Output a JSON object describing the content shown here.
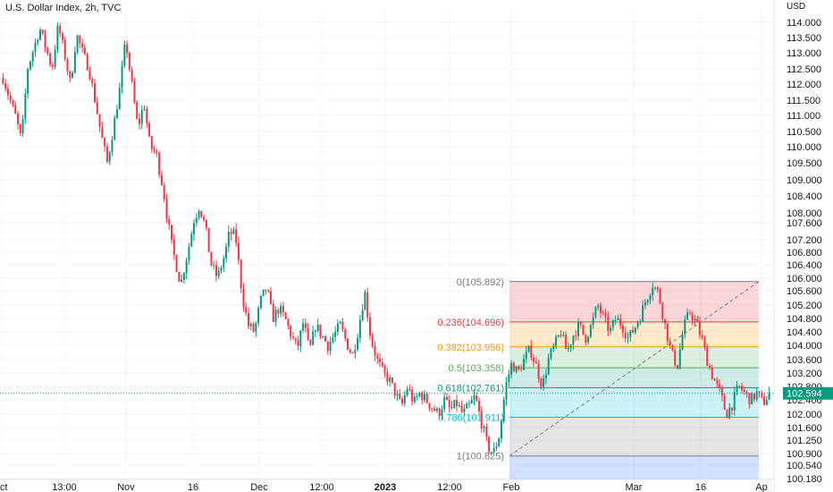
{
  "header": {
    "title": "U.S. Dollar Index, 2h, TVC"
  },
  "chart_data": {
    "type": "candlestick",
    "title": "U.S. Dollar Index, 2h, TVC",
    "currency_label": "USD",
    "last_price": 102.594,
    "last_price_label": "102.594",
    "y_range": [
      100.18,
      114.0
    ],
    "y_ticks": [
      "114.000",
      "113.500",
      "113.000",
      "112.500",
      "112.000",
      "111.500",
      "111.000",
      "110.500",
      "110.000",
      "109.500",
      "109.000",
      "108.400",
      "108.000",
      "107.600",
      "107.200",
      "106.800",
      "106.400",
      "106.000",
      "105.600",
      "105.200",
      "104.800",
      "104.400",
      "104.000",
      "103.600",
      "103.200",
      "102.800",
      "102.400",
      "102.000",
      "101.600",
      "101.250",
      "100.900",
      "100.540",
      "100.180"
    ],
    "x_ticks": [
      "Oct",
      "13:00",
      "Nov",
      "16",
      "Dec",
      "12:00",
      "2023",
      "12:00",
      "Feb",
      "Mar",
      "16",
      "Ap"
    ],
    "fib": {
      "levels": [
        {
          "label": "0(105.892)",
          "price": 105.892,
          "color": "#787b86",
          "fill": "rgba(242,54,69,0.2)"
        },
        {
          "label": "0.236(104.696)",
          "price": 104.696,
          "color": "#f23645",
          "fill": "rgba(255,152,0,0.2)"
        },
        {
          "label": "0.382(103.956)",
          "price": 103.956,
          "color": "#ff9800",
          "fill": "rgba(76,175,80,0.2)"
        },
        {
          "label": "0.5(103.358)",
          "price": 103.358,
          "color": "#4caf50",
          "fill": "rgba(8,153,129,0.2)"
        },
        {
          "label": "0.618(102.761)",
          "price": 102.761,
          "color": "#089981",
          "fill": "rgba(0,188,212,0.2)"
        },
        {
          "label": "0.786(101.911)",
          "price": 101.911,
          "color": "#00bcd4",
          "fill": "rgba(120,123,134,0.2)"
        },
        {
          "label": "1(100.825)",
          "price": 100.825,
          "color": "#787b86",
          "fill": "rgba(41,98,255,0.2)"
        }
      ]
    },
    "up_color": "#089981",
    "down_color": "#f23645",
    "path": [
      [
        0,
        112.2
      ],
      [
        2,
        111.0
      ],
      [
        3,
        110.2
      ],
      [
        4,
        112.5
      ],
      [
        6,
        113.8
      ],
      [
        8,
        112.5
      ],
      [
        9,
        113.9
      ],
      [
        10,
        113.0
      ],
      [
        11,
        112.0
      ],
      [
        12,
        113.6
      ],
      [
        13,
        113.0
      ],
      [
        14,
        112.5
      ],
      [
        15,
        111.5
      ],
      [
        16,
        110.4
      ],
      [
        17,
        109.5
      ],
      [
        18,
        110.6
      ],
      [
        19,
        111.8
      ],
      [
        20,
        113.4
      ],
      [
        21,
        112.0
      ],
      [
        22,
        110.6
      ],
      [
        23,
        111.4
      ],
      [
        24,
        110.0
      ],
      [
        25,
        109.8
      ],
      [
        26,
        108.8
      ],
      [
        27,
        107.5
      ],
      [
        28,
        106.6
      ],
      [
        29,
        105.8
      ],
      [
        30,
        106.7
      ],
      [
        31,
        107.6
      ],
      [
        32,
        108.2
      ],
      [
        33,
        107.5
      ],
      [
        34,
        106.4
      ],
      [
        35,
        106.0
      ],
      [
        36,
        106.6
      ],
      [
        37,
        107.4
      ],
      [
        38,
        107.2
      ],
      [
        39,
        105.5
      ],
      [
        40,
        104.6
      ],
      [
        41,
        104.4
      ],
      [
        42,
        105.3
      ],
      [
        43,
        105.7
      ],
      [
        44,
        104.8
      ],
      [
        45,
        105.1
      ],
      [
        46,
        104.8
      ],
      [
        47,
        104.3
      ],
      [
        48,
        103.9
      ],
      [
        49,
        104.7
      ],
      [
        50,
        103.8
      ],
      [
        51,
        104.6
      ],
      [
        52,
        104.3
      ],
      [
        53,
        104.0
      ],
      [
        54,
        104.3
      ],
      [
        55,
        104.6
      ],
      [
        56,
        104.1
      ],
      [
        57,
        103.7
      ],
      [
        58,
        104.5
      ],
      [
        59,
        105.6
      ],
      [
        60,
        104.2
      ],
      [
        61,
        103.6
      ],
      [
        62,
        103.2
      ],
      [
        63,
        103.0
      ],
      [
        64,
        102.6
      ],
      [
        65,
        102.2
      ],
      [
        66,
        102.8
      ],
      [
        67,
        102.3
      ],
      [
        68,
        102.6
      ],
      [
        69,
        102.4
      ],
      [
        70,
        102.2
      ],
      [
        71,
        102.0
      ],
      [
        72,
        102.4
      ],
      [
        73,
        102.1
      ],
      [
        74,
        102.3
      ],
      [
        75,
        102.0
      ],
      [
        76,
        102.2
      ],
      [
        77,
        102.5
      ],
      [
        78,
        101.8
      ],
      [
        79,
        101.1
      ],
      [
        80,
        100.9
      ],
      [
        81,
        101.4
      ],
      [
        82,
        102.8
      ],
      [
        83,
        103.5
      ],
      [
        84,
        103.2
      ],
      [
        85,
        103.6
      ],
      [
        86,
        103.9
      ],
      [
        87,
        103.4
      ],
      [
        88,
        102.8
      ],
      [
        89,
        103.6
      ],
      [
        90,
        104.0
      ],
      [
        91,
        104.4
      ],
      [
        92,
        103.8
      ],
      [
        93,
        104.3
      ],
      [
        94,
        104.6
      ],
      [
        95,
        104.2
      ],
      [
        96,
        104.6
      ],
      [
        97,
        105.2
      ],
      [
        98,
        104.8
      ],
      [
        99,
        104.4
      ],
      [
        100,
        104.8
      ],
      [
        101,
        104.6
      ],
      [
        102,
        104.2
      ],
      [
        103,
        104.5
      ],
      [
        104,
        104.9
      ],
      [
        105,
        105.4
      ],
      [
        106,
        105.8
      ],
      [
        107,
        105.5
      ],
      [
        108,
        104.6
      ],
      [
        109,
        103.8
      ],
      [
        110,
        103.4
      ],
      [
        111,
        104.5
      ],
      [
        112,
        105.0
      ],
      [
        113,
        104.7
      ],
      [
        114,
        104.2
      ],
      [
        115,
        103.5
      ],
      [
        116,
        103.0
      ],
      [
        117,
        102.6
      ],
      [
        118,
        102.0
      ],
      [
        119,
        102.3
      ],
      [
        120,
        102.8
      ],
      [
        121,
        102.6
      ],
      [
        122,
        102.4
      ],
      [
        123,
        102.6
      ],
      [
        124,
        102.3
      ],
      [
        125,
        102.6
      ]
    ]
  }
}
